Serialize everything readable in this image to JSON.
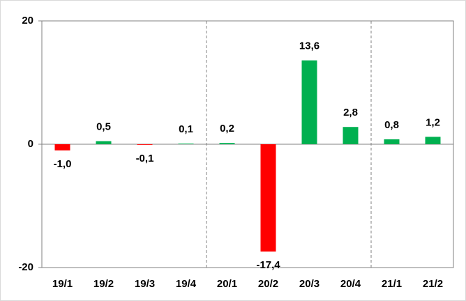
{
  "chart_data": {
    "type": "bar",
    "categories": [
      "19/1",
      "19/2",
      "19/3",
      "19/4",
      "20/1",
      "20/2",
      "20/3",
      "20/4",
      "21/1",
      "21/2"
    ],
    "values": [
      -1.0,
      0.5,
      -0.1,
      0.1,
      0.2,
      -17.4,
      13.6,
      2.8,
      0.8,
      1.2
    ],
    "value_labels": [
      "-1,0",
      "0,5",
      "-0,1",
      "0,1",
      "0,2",
      "-17,4",
      "13,6",
      "2,8",
      "0,8",
      "1,2"
    ],
    "colors": [
      "#ff0000",
      "#00b050",
      "#ff0000",
      "#00b050",
      "#00b050",
      "#ff0000",
      "#00b050",
      "#00b050",
      "#00b050",
      "#00b050"
    ],
    "ylim": [
      -20,
      20
    ],
    "yticks": [
      -20,
      0,
      20
    ]
  }
}
